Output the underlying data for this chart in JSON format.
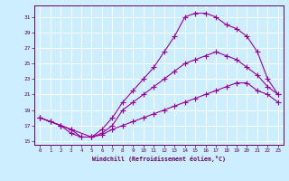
{
  "xlabel": "Windchill (Refroidissement éolien,°C)",
  "bg_color": "#cceeff",
  "grid_color": "#ffffff",
  "line_color": "#990099",
  "spine_color": "#660066",
  "xlim": [
    -0.5,
    23.5
  ],
  "ylim": [
    14.5,
    32.5
  ],
  "yticks": [
    15,
    17,
    19,
    21,
    23,
    25,
    27,
    29,
    31
  ],
  "xticks": [
    0,
    1,
    2,
    3,
    4,
    5,
    6,
    7,
    8,
    9,
    10,
    11,
    12,
    13,
    14,
    15,
    16,
    17,
    18,
    19,
    20,
    21,
    22,
    23
  ],
  "line_a_x": [
    0,
    1,
    2,
    3,
    4,
    5,
    6,
    7,
    8,
    9,
    10,
    11,
    12,
    13,
    14,
    15,
    16,
    17,
    18,
    19,
    20,
    21,
    22,
    23
  ],
  "line_a_y": [
    18.0,
    17.5,
    17.0,
    16.5,
    15.5,
    15.5,
    15.8,
    16.5,
    17.0,
    17.5,
    18.0,
    18.5,
    19.0,
    19.5,
    20.0,
    20.5,
    21.0,
    21.5,
    22.0,
    22.5,
    22.5,
    21.5,
    21.0,
    20.0
  ],
  "line_b_x": [
    0,
    1,
    2,
    3,
    4,
    5,
    6,
    7,
    8,
    9,
    10,
    11,
    12,
    13,
    14,
    15,
    16,
    17,
    18,
    19,
    20,
    21,
    22,
    23
  ],
  "line_b_y": [
    18.0,
    17.5,
    17.0,
    16.0,
    15.5,
    15.5,
    16.5,
    18.0,
    20.0,
    21.5,
    23.0,
    24.5,
    26.5,
    28.5,
    31.0,
    31.5,
    31.5,
    31.0,
    30.0,
    29.5,
    28.5,
    26.5,
    23.0,
    21.0
  ],
  "line_c_x": [
    0,
    2,
    3,
    5,
    6,
    7,
    8,
    9,
    10,
    11,
    12,
    13,
    14,
    15,
    16,
    17,
    18,
    19,
    20,
    21,
    22,
    23
  ],
  "line_c_y": [
    18.0,
    17.0,
    16.5,
    15.5,
    16.0,
    17.0,
    19.0,
    20.0,
    21.0,
    22.0,
    23.0,
    24.0,
    25.0,
    25.5,
    26.0,
    26.5,
    26.0,
    25.5,
    24.5,
    23.5,
    22.0,
    21.0
  ]
}
